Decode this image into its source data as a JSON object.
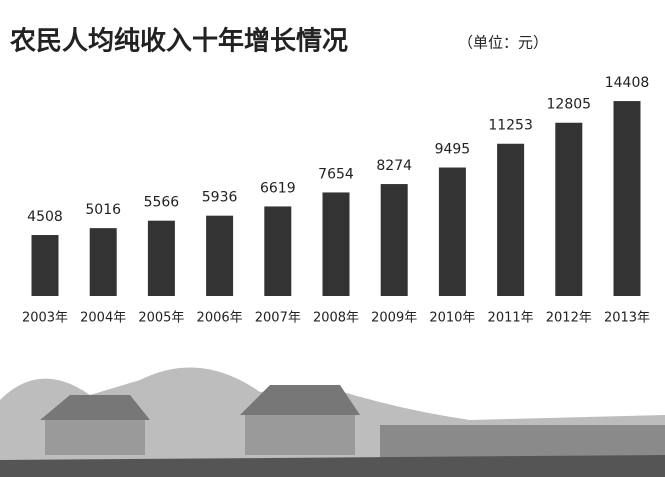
{
  "chart_data": {
    "type": "bar",
    "title": "农民人均纯收入十年增长情况",
    "subtitle": "（单位：元）",
    "categories": [
      "2003年",
      "2004年",
      "2005年",
      "2006年",
      "2007年",
      "2008年",
      "2009年",
      "2010年",
      "2011年",
      "2012年",
      "2013年"
    ],
    "values": [
      4508,
      5016,
      5566,
      5936,
      6619,
      7654,
      8274,
      9495,
      11253,
      12805,
      14408
    ],
    "color": "#333333"
  }
}
